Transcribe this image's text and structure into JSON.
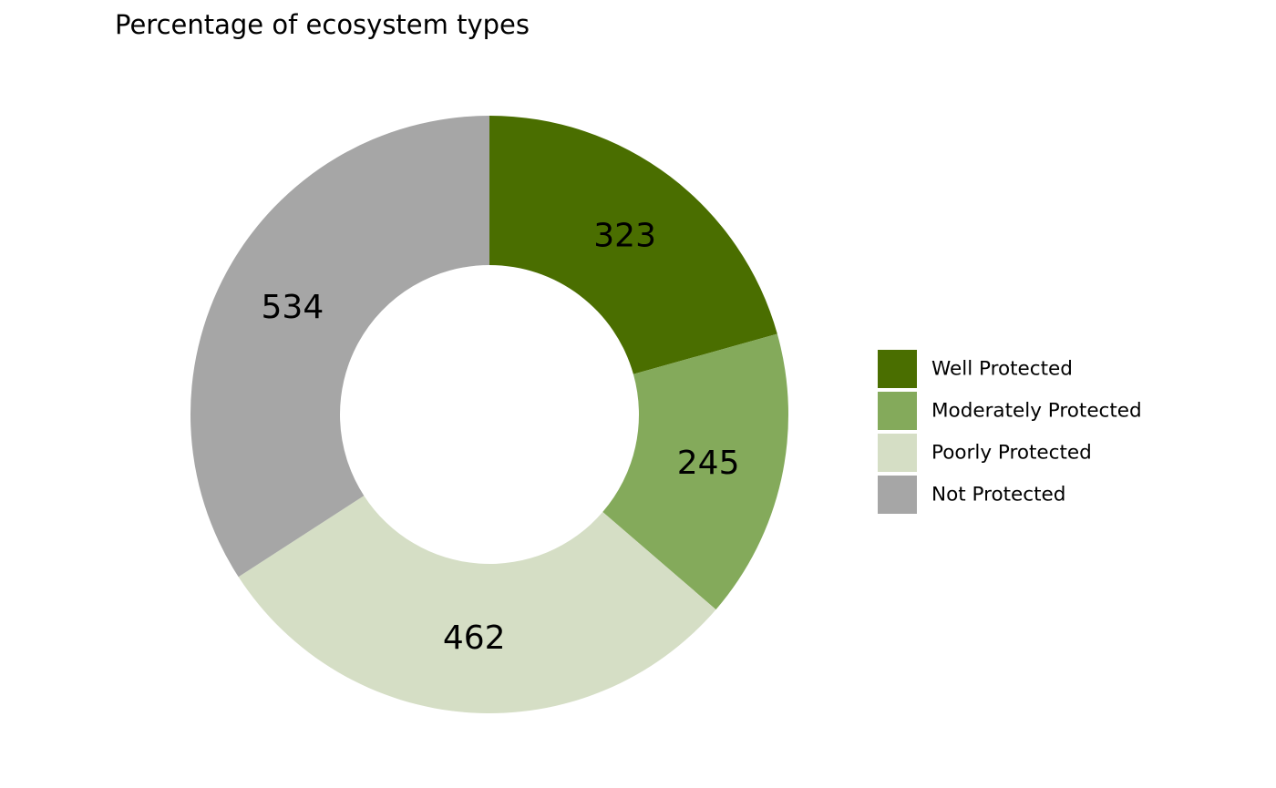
{
  "chart_data": {
    "type": "pie",
    "variant": "donut",
    "title": "Percentage of ecosystem types",
    "start_angle_deg": 0,
    "direction": "clockwise",
    "legend_position": "right",
    "slices": [
      {
        "label": "Well Protected",
        "value": 323,
        "color": "#4a6e00"
      },
      {
        "label": "Moderately Protected",
        "value": 245,
        "color": "#84aa5b"
      },
      {
        "label": "Poorly Protected",
        "value": 462,
        "color": "#d5dec5"
      },
      {
        "label": "Not Protected",
        "value": 534,
        "color": "#a6a6a6"
      }
    ]
  }
}
